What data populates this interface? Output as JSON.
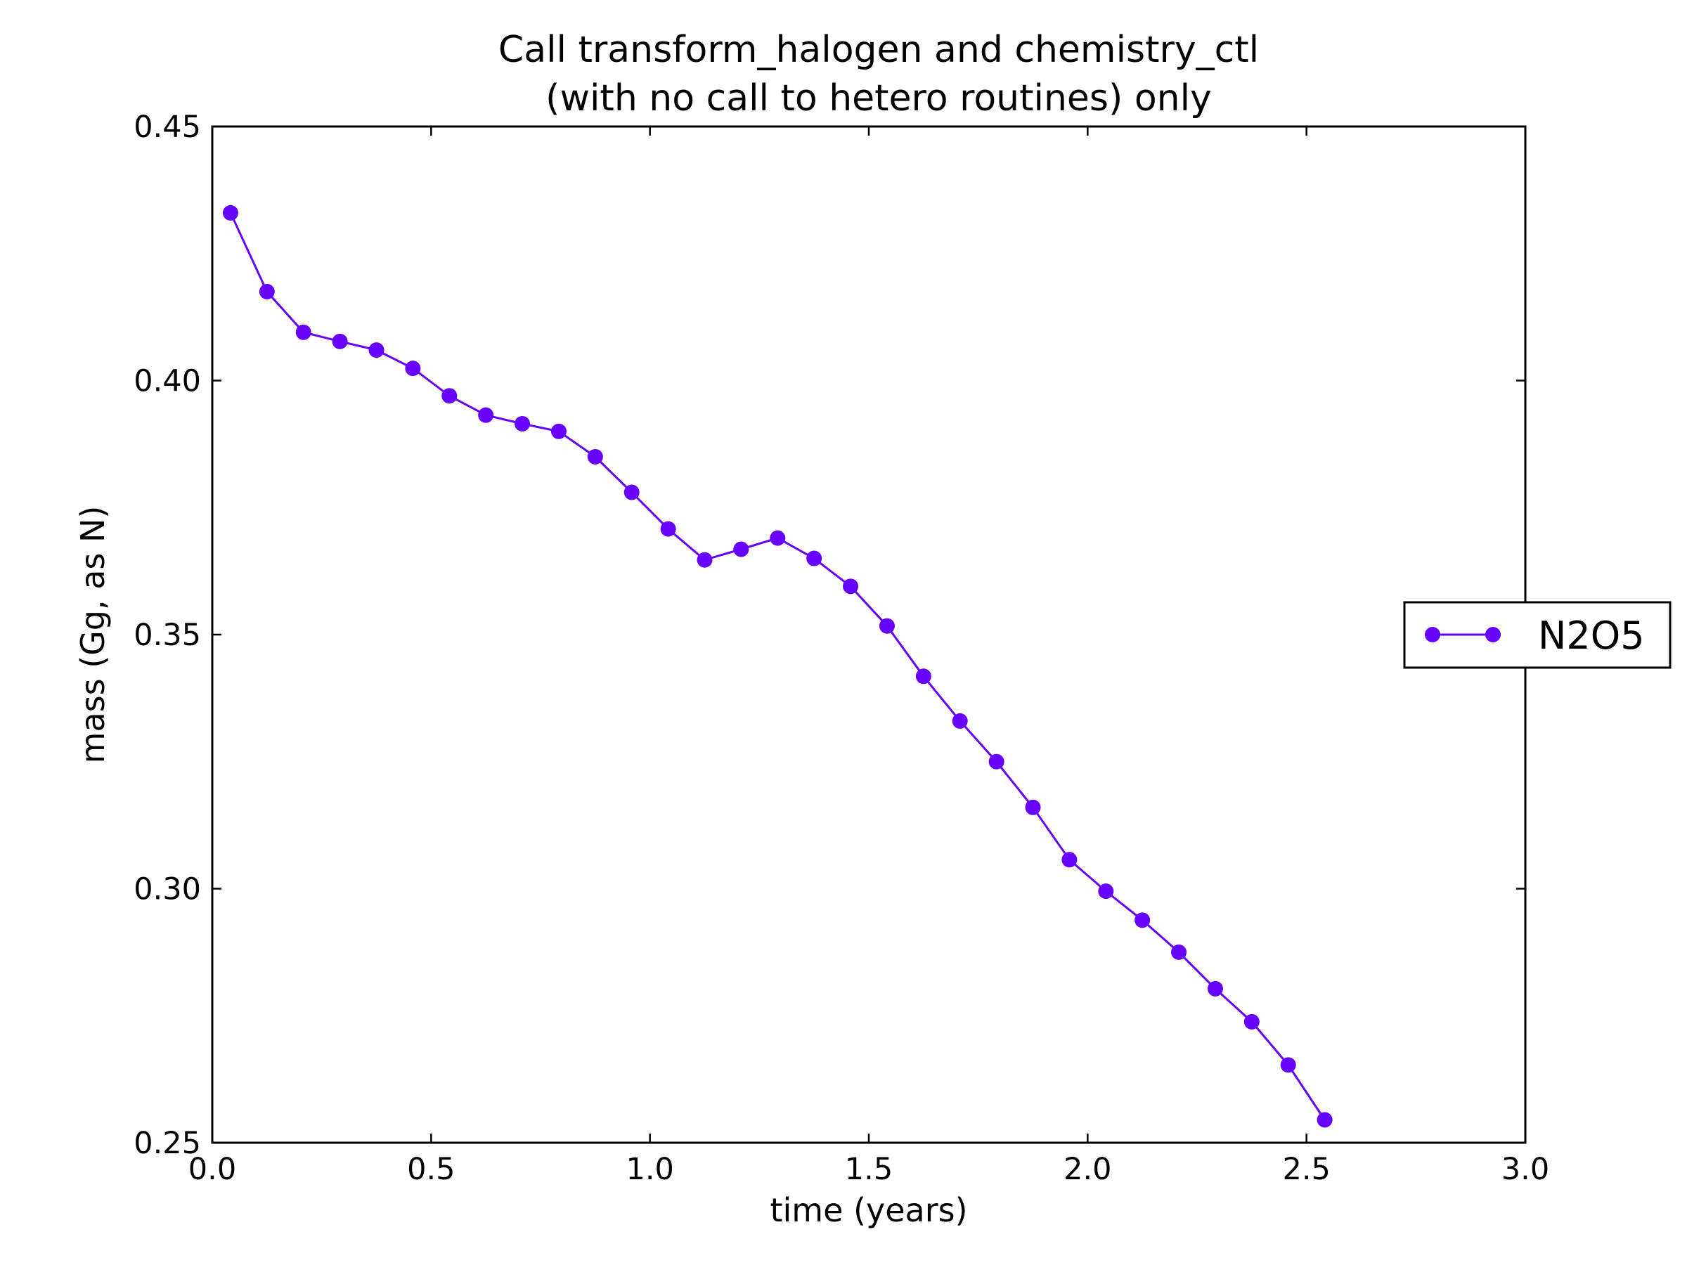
{
  "chart_data": {
    "type": "line",
    "title_line1": "Call transform_halogen and chemistry_ctl",
    "title_line2": "(with no call to hetero routines) only",
    "xlabel": "time (years)",
    "ylabel": "mass (Gg, as N)",
    "xlim": [
      0.0,
      3.0
    ],
    "ylim": [
      0.25,
      0.45
    ],
    "xticks": [
      0.0,
      0.5,
      1.0,
      1.5,
      2.0,
      2.5,
      3.0
    ],
    "xtick_labels": [
      "0.0",
      "0.5",
      "1.0",
      "1.5",
      "2.0",
      "2.5",
      "3.0"
    ],
    "yticks": [
      0.25,
      0.3,
      0.35,
      0.4,
      0.45
    ],
    "ytick_labels": [
      "0.25",
      "0.30",
      "0.35",
      "0.40",
      "0.45"
    ],
    "grid": false,
    "legend_position": "right-outside",
    "series": [
      {
        "name": "N2O5",
        "color": "#6600ff",
        "marker": "circle",
        "x": [
          0.0417,
          0.125,
          0.2083,
          0.2917,
          0.375,
          0.4583,
          0.5417,
          0.625,
          0.7083,
          0.7917,
          0.875,
          0.9583,
          1.0417,
          1.125,
          1.2083,
          1.2917,
          1.375,
          1.4583,
          1.5417,
          1.625,
          1.7083,
          1.7917,
          1.875,
          1.9583,
          2.0417,
          2.125,
          2.2083,
          2.2917,
          2.375,
          2.4583,
          2.5417
        ],
        "y": [
          0.433,
          0.4175,
          0.4095,
          0.4077,
          0.406,
          0.4024,
          0.397,
          0.3932,
          0.3915,
          0.39,
          0.385,
          0.378,
          0.3708,
          0.3647,
          0.3668,
          0.369,
          0.365,
          0.3595,
          0.3517,
          0.3418,
          0.333,
          0.325,
          0.316,
          0.3057,
          0.2995,
          0.2938,
          0.2875,
          0.2803,
          0.2738,
          0.2653,
          0.2545
        ]
      }
    ]
  }
}
